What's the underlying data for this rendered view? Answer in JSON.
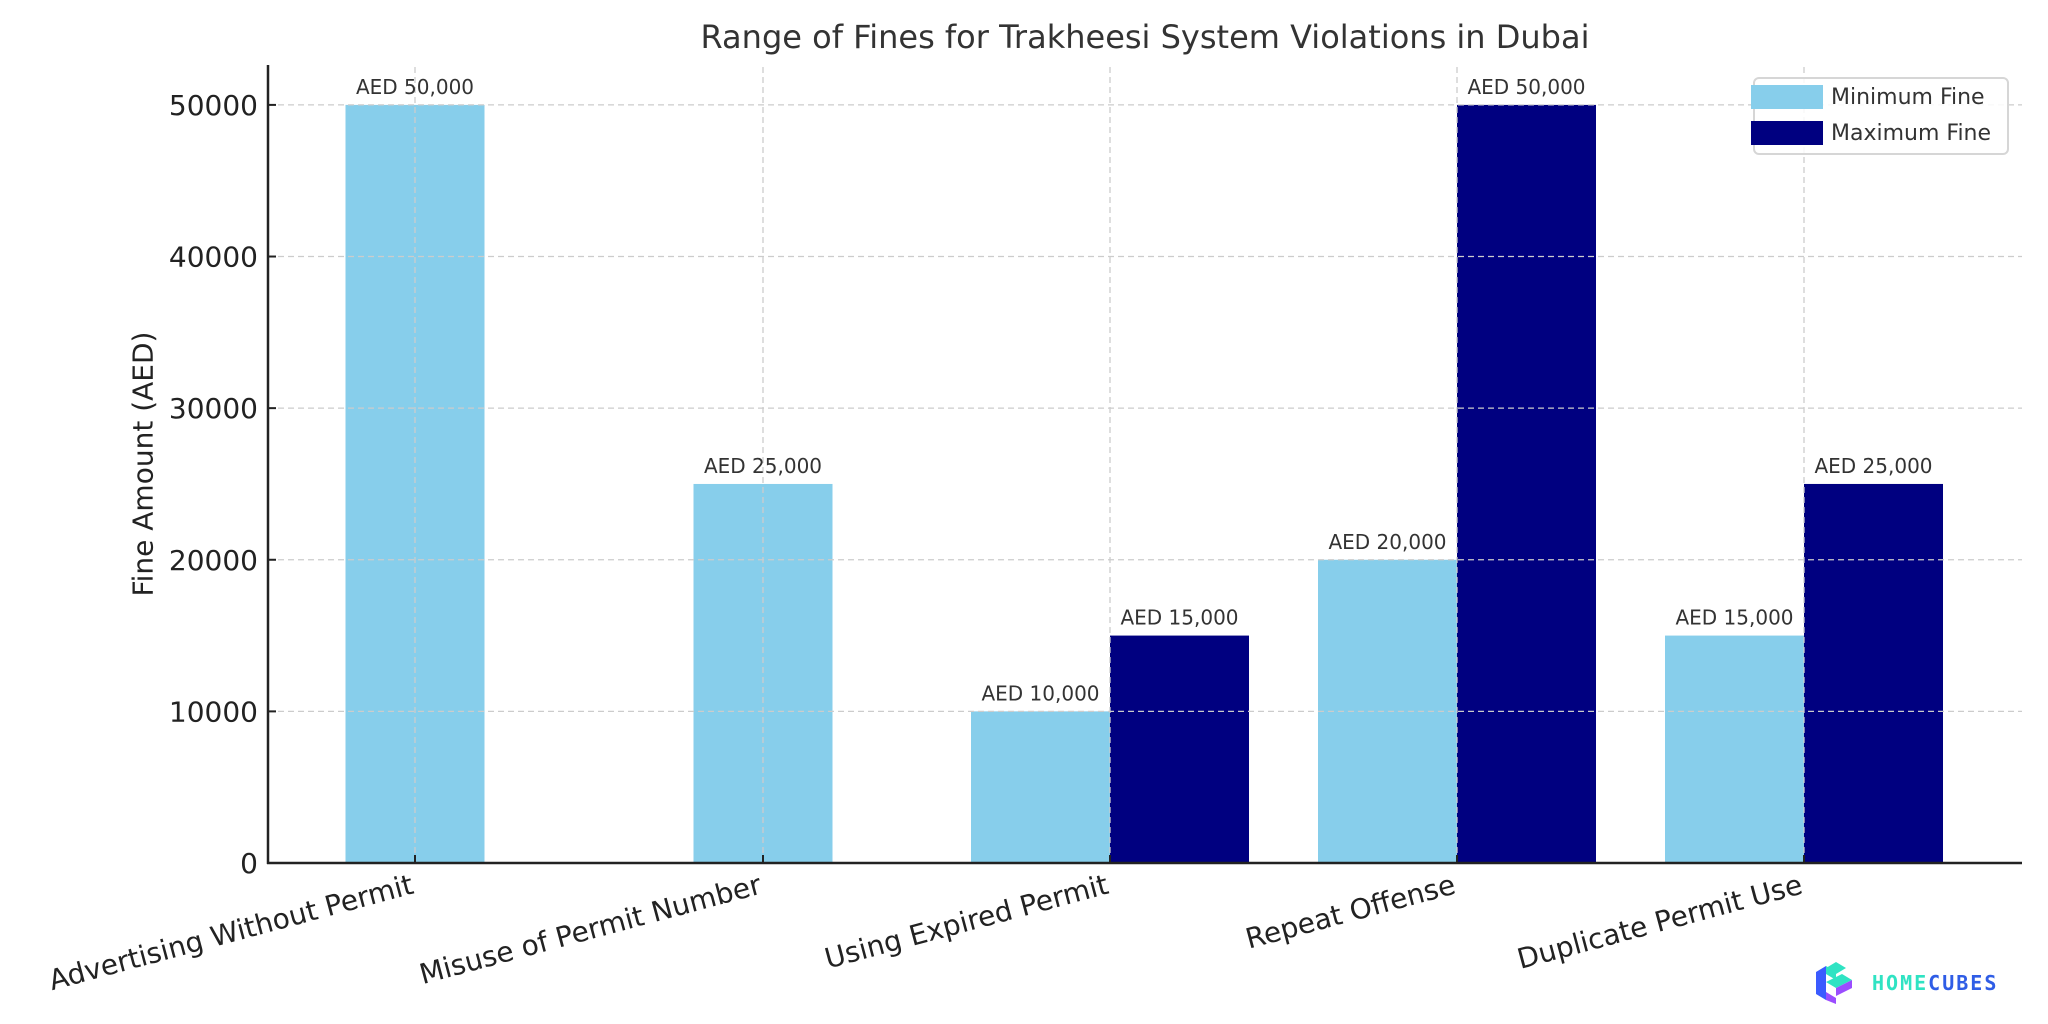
{
  "chart_data": {
    "type": "bar",
    "title": "Range of Fines for Trakheesi System Violations in Dubai",
    "xlabel": "",
    "ylabel": "Fine Amount (AED)",
    "categories": [
      "Advertising Without Permit",
      "Misuse of Permit Number",
      "Using Expired Permit",
      "Repeat Offense",
      "Duplicate Permit Use"
    ],
    "series": [
      {
        "name": "Minimum Fine",
        "color": "#87ceeb",
        "values": [
          50000,
          25000,
          10000,
          20000,
          15000
        ],
        "labels": [
          "AED 50,000",
          "AED 25,000",
          "AED 10,000",
          "AED 20,000",
          "AED 15,000"
        ]
      },
      {
        "name": "Maximum Fine",
        "color": "#000080",
        "values": [
          null,
          null,
          15000,
          50000,
          25000
        ],
        "labels": [
          null,
          null,
          "AED 15,000",
          "AED 50,000",
          "AED 25,000"
        ]
      }
    ],
    "yticks": [
      0,
      10000,
      20000,
      30000,
      40000,
      50000
    ],
    "ytick_labels": [
      "0",
      "10000",
      "20000",
      "30000",
      "40000",
      "50000"
    ],
    "ylim": [
      0,
      52500
    ],
    "grid": true,
    "legend_position": "upper right",
    "xtick_rotation": 15
  },
  "watermark": {
    "brand_part1": "HOME",
    "brand_part2": "CUBES",
    "colors": {
      "teal": "#2fe3c3",
      "blue": "#2f5de6",
      "purple": "#9b4dff"
    }
  }
}
